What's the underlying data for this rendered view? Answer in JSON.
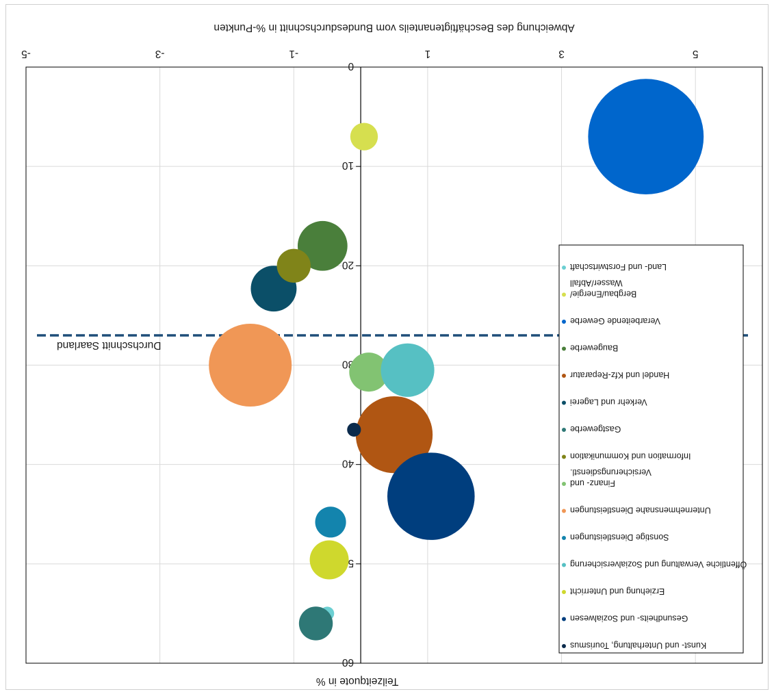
{
  "chart_data": {
    "type": "bubble",
    "x_axis_title": "Abweichung des Beschäftigtenanteils vom Bundesdurchschnitt in %-Punkten",
    "y_axis_title": "Teilzeitquote in %",
    "xlim": [
      -5,
      6
    ],
    "ylim": [
      0,
      60
    ],
    "x_ticks": [
      "-5",
      "-3",
      "-1",
      "1",
      "3",
      "5"
    ],
    "y_ticks": [
      "0",
      "10",
      "20",
      "30",
      "40",
      "50",
      "60"
    ],
    "grid": true,
    "inverted": true,
    "reference_line": {
      "label": "Durchschnitt Saarland",
      "y": 27,
      "color": "#1f4e79"
    },
    "legend_position": "right",
    "series": [
      {
        "name": "Land- und Forstwirtschaft",
        "x": -0.5,
        "y": 55,
        "size": 0.1,
        "color": "#6ccfd2"
      },
      {
        "name": "Bergbau/Energie/ Wasser/Abfall",
        "x": 0.05,
        "y": 7,
        "size": 0.4,
        "color": "#d6df4f"
      },
      {
        "name": "Verarbeitende Gewerbe",
        "x": 4.26,
        "y": 7,
        "size": 7.0,
        "color": "#0066cc"
      },
      {
        "name": "Baugewerbe",
        "x": -0.57,
        "y": 18,
        "size": 1.3,
        "color": "#4a7f3b"
      },
      {
        "name": "Handel und Kfz-Reparatur",
        "x": 0.5,
        "y": 37,
        "size": 3.1,
        "color": "#b05613"
      },
      {
        "name": "Verkehr und Lagerei",
        "x": -1.3,
        "y": 22.3,
        "size": 1.1,
        "color": "#0b4f68"
      },
      {
        "name": "Gastgewerbe",
        "x": -0.67,
        "y": 56,
        "size": 0.6,
        "color": "#2e7876"
      },
      {
        "name": "Information und Kommunikation",
        "x": -1.0,
        "y": 20,
        "size": 0.6,
        "color": "#808419"
      },
      {
        "name": "Finanz- und Versicherungsdienstl.",
        "x": 0.12,
        "y": 30.7,
        "size": 0.8,
        "color": "#82c372"
      },
      {
        "name": "Unternehmensnahe Dienstleistungen",
        "x": -1.65,
        "y": 30,
        "size": 3.6,
        "color": "#f09756"
      },
      {
        "name": "Sonstige Dienstleistungen",
        "x": -0.45,
        "y": 45.8,
        "size": 0.5,
        "color": "#1384ad"
      },
      {
        "name": "Öffentliche Verwaltung und Sozialversicherung",
        "x": 0.7,
        "y": 30.5,
        "size": 1.5,
        "color": "#56c0c3"
      },
      {
        "name": "Erziehung und Unterricht",
        "x": -0.47,
        "y": 49.6,
        "size": 0.8,
        "color": "#cfd82d"
      },
      {
        "name": "Gesundheits- und Sozialwesen",
        "x": 1.05,
        "y": 43.2,
        "size": 4.0,
        "color": "#003e7e"
      },
      {
        "name": "Kunst- und Unterhaltung, Tourismus",
        "x": -0.1,
        "y": 36.5,
        "size": 0.1,
        "color": "#0b2b4c"
      }
    ]
  }
}
